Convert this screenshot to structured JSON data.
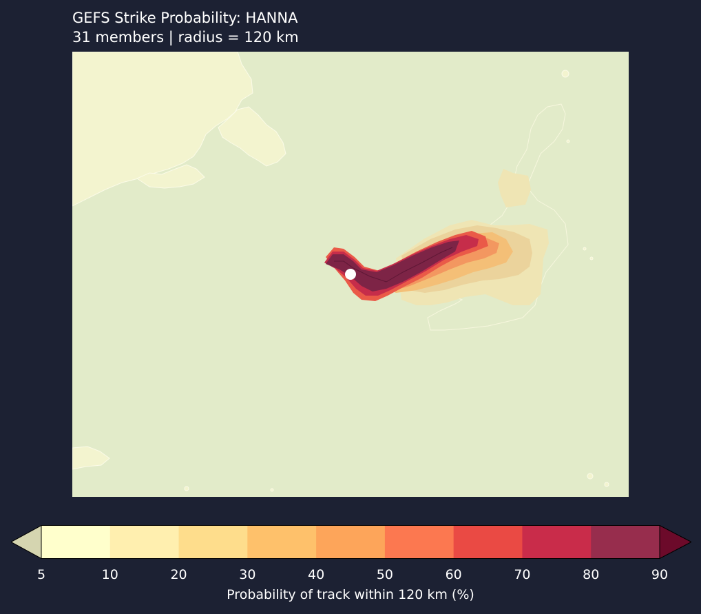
{
  "title": "GEFS Strike Probability: HANNA",
  "subtitle": "31 members  |  radius = 120 km",
  "map": {
    "storm_marker": "current-position-marker",
    "land_color": "#f3f4cf",
    "ocean_color": "#e2ebc9"
  },
  "colorbar": {
    "label": "Probability of track within 120 km (%)",
    "levels": [
      "5",
      "10",
      "20",
      "30",
      "40",
      "50",
      "60",
      "70",
      "80",
      "90"
    ],
    "colors": [
      "#ffffcc",
      "#ffefaf",
      "#fedd8c",
      "#fec16b",
      "#fda55a",
      "#fc7850",
      "#ea4a44",
      "#c92c4a",
      "#972d4d"
    ],
    "under_color": "#d5d5b0",
    "over_color": "#6c0a2a",
    "extend": "both"
  }
}
